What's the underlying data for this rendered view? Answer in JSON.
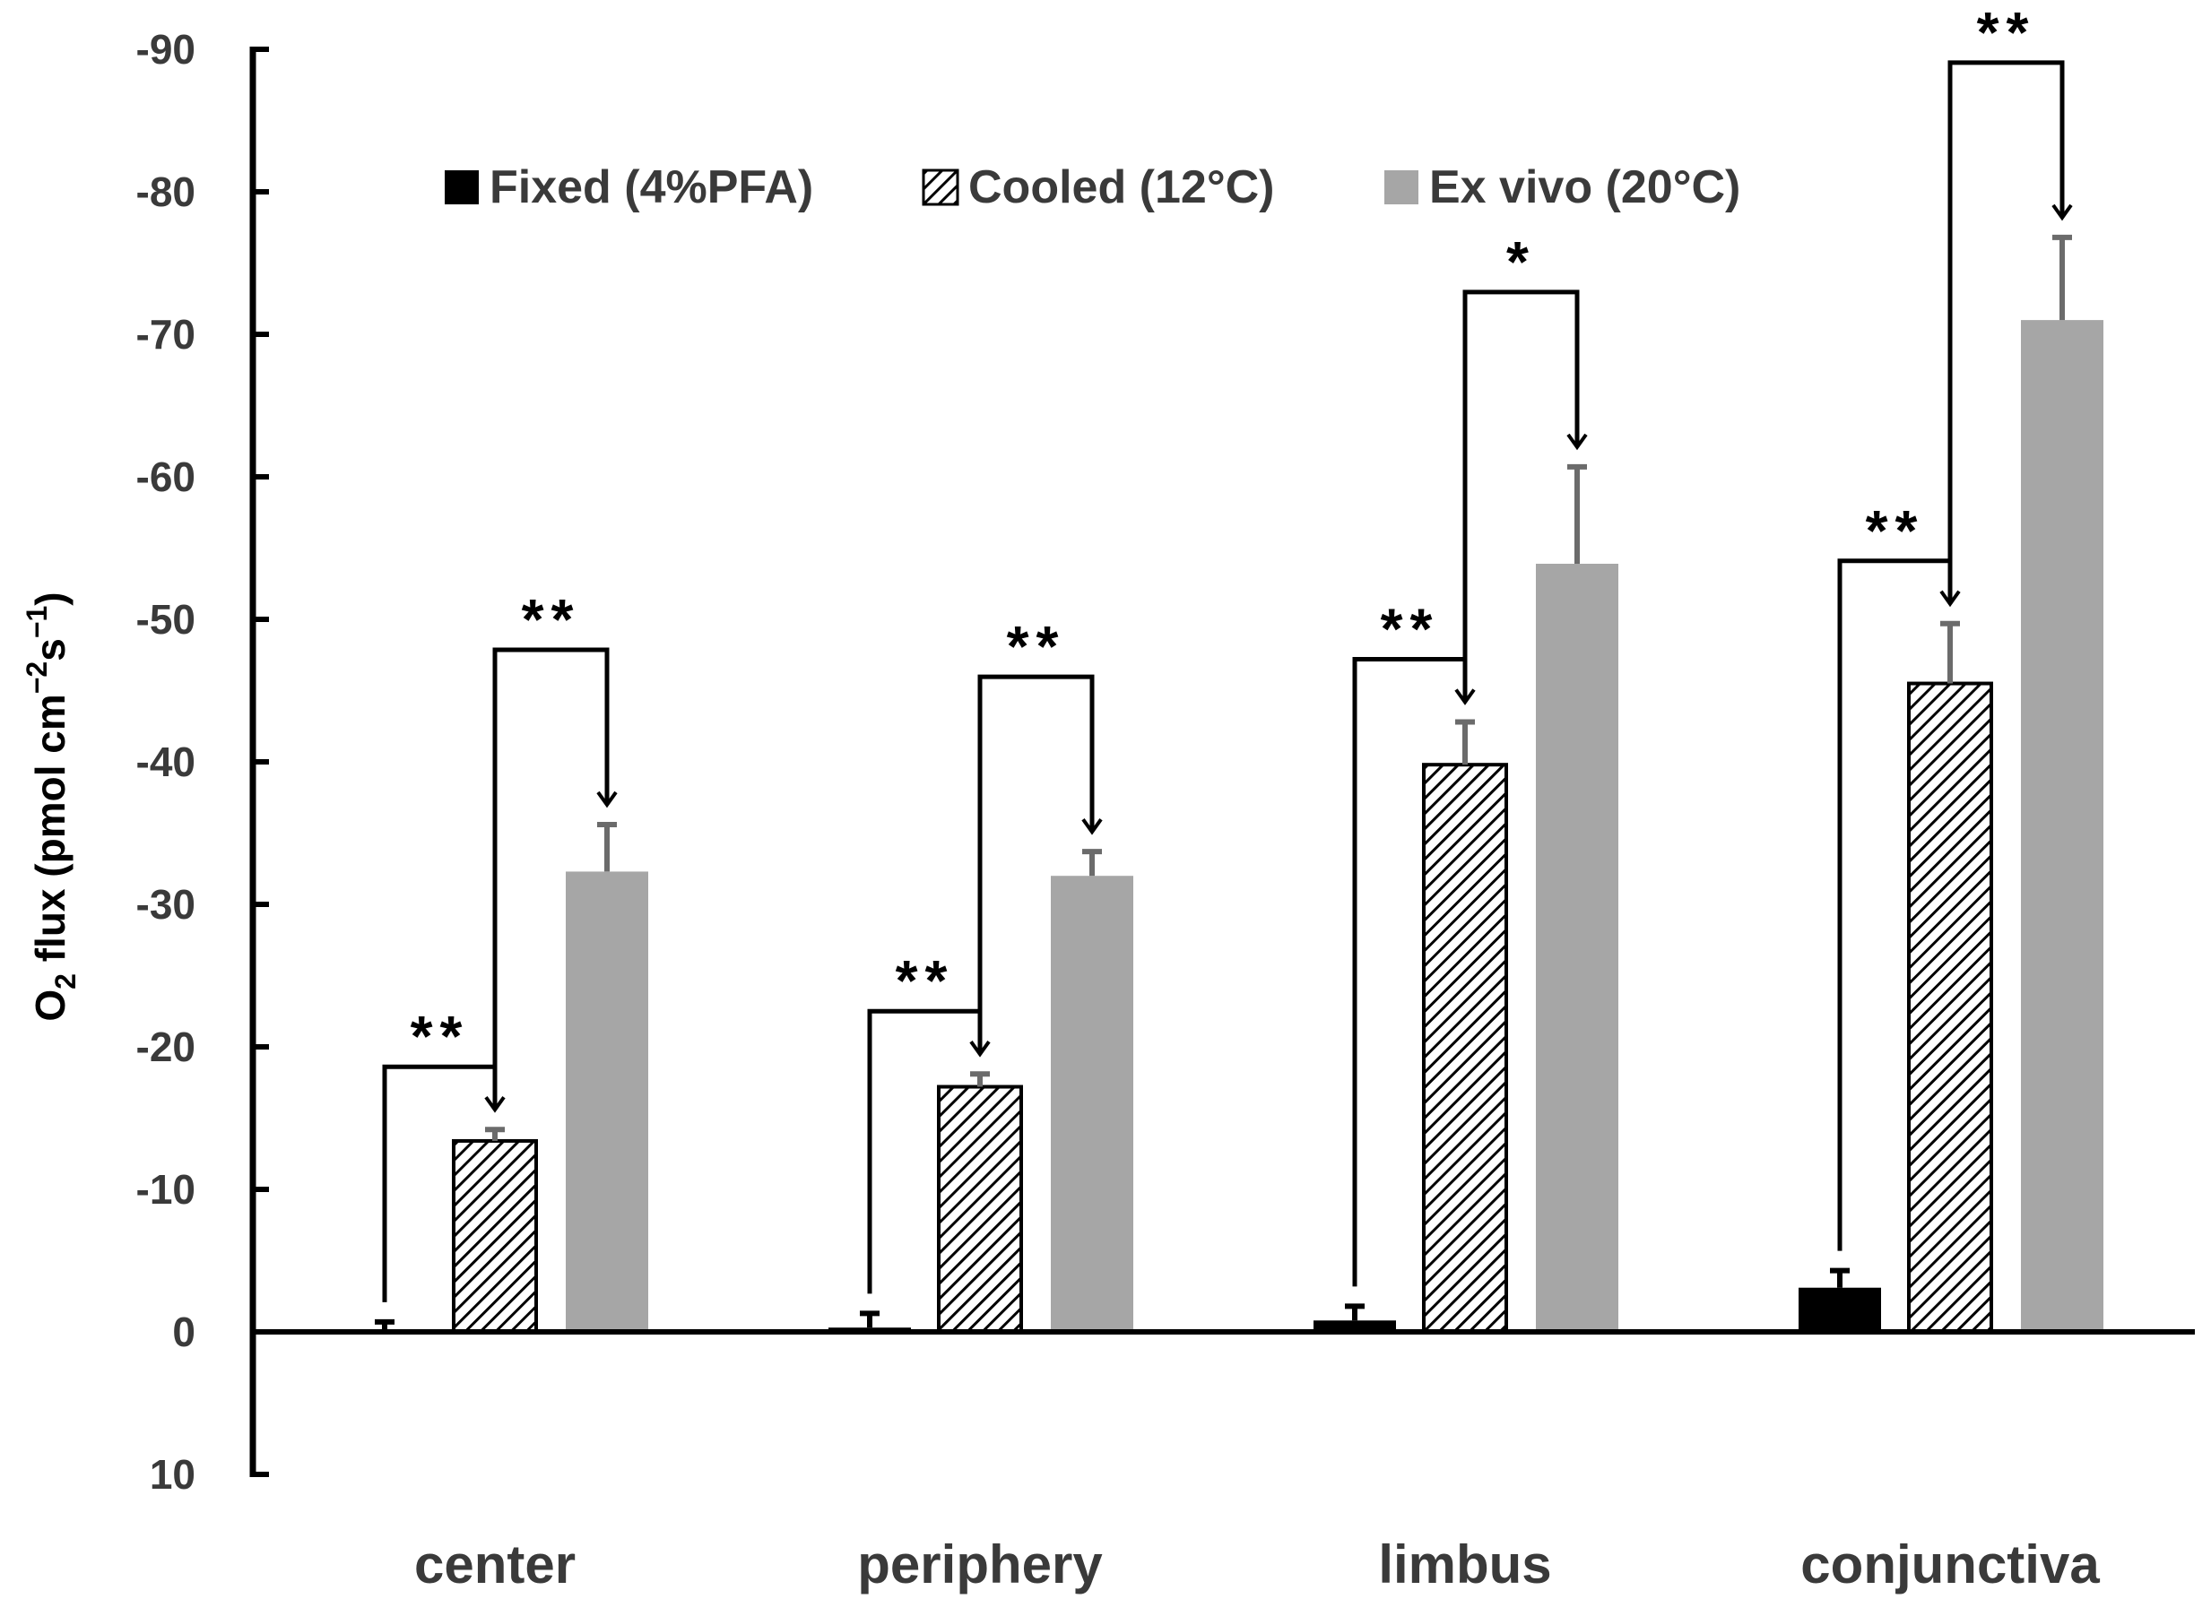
{
  "chart_data": {
    "type": "bar",
    "title": "",
    "xlabel": "",
    "ylabel": {
      "prefix": "O",
      "subscript": "2",
      "text": " flux (pmol cm",
      "sup1": "−2",
      "mid": "s",
      "sup2": "−1",
      "suffix": ")"
    },
    "ylim": [
      10,
      -90
    ],
    "yticks": [
      -90,
      -80,
      -70,
      -60,
      -50,
      -40,
      -30,
      -20,
      -10,
      0,
      10
    ],
    "categories": [
      "center",
      "periphery",
      "limbus",
      "conjunctiva"
    ],
    "legend_position": "top",
    "series": [
      {
        "name": "Fixed (4%PFA)",
        "pattern": "solid",
        "color": "#000000",
        "values": [
          0.0,
          -0.3,
          -0.8,
          -3.1
        ],
        "errors": [
          0.7,
          1.0,
          1.0,
          1.2
        ]
      },
      {
        "name": "Cooled (12°C)",
        "pattern": "hatched",
        "color": "#000000",
        "values": [
          -13.4,
          -17.2,
          -39.8,
          -45.5
        ],
        "errors": [
          0.8,
          0.9,
          3.0,
          4.2
        ]
      },
      {
        "name": "Ex vivo (20°C)",
        "pattern": "solid",
        "color": "#a6a6a6",
        "values": [
          -32.3,
          -32.0,
          -53.9,
          -71.0
        ],
        "errors": [
          3.3,
          1.7,
          6.8,
          5.8
        ]
      }
    ],
    "significance": [
      {
        "category": "center",
        "from": 0,
        "to": 1,
        "label": "**"
      },
      {
        "category": "center",
        "from": 1,
        "to": 2,
        "label": "**"
      },
      {
        "category": "periphery",
        "from": 0,
        "to": 1,
        "label": "**"
      },
      {
        "category": "periphery",
        "from": 1,
        "to": 2,
        "label": "**"
      },
      {
        "category": "limbus",
        "from": 0,
        "to": 1,
        "label": "**"
      },
      {
        "category": "limbus",
        "from": 1,
        "to": 2,
        "label": "*"
      },
      {
        "category": "conjunctiva",
        "from": 0,
        "to": 1,
        "label": "**"
      },
      {
        "category": "conjunctiva",
        "from": 1,
        "to": 2,
        "label": "**"
      }
    ]
  }
}
